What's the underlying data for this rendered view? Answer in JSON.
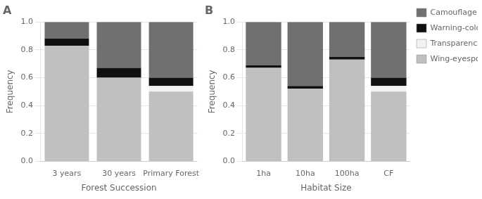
{
  "chart_data": [
    {
      "type": "bar",
      "title": "A",
      "stacked": true,
      "grid": true,
      "categories": [
        "3 years",
        "30 years",
        "Primary Forest"
      ],
      "xlabel": "Forest Succession",
      "ylabel": "Frequency",
      "ylim": [
        0.0,
        1.0
      ],
      "yticks": [
        {
          "value": 0,
          "label": "0.0"
        },
        0.2,
        0.4,
        0.6,
        0.8,
        {
          "value": 1,
          "label": "1.0"
        }
      ],
      "series": [
        {
          "name": "Wing-eyespot",
          "color": "#c0c0c0",
          "values": [
            0.83,
            0.6,
            0.5
          ]
        },
        {
          "name": "Transparency",
          "color": "#f2f2f2",
          "values": [
            0.0,
            0.0,
            0.04
          ]
        },
        {
          "name": "Warning-colour",
          "color": "#101010",
          "values": [
            0.05,
            0.07,
            0.06
          ]
        },
        {
          "name": "Camouflage",
          "color": "#707070",
          "values": [
            0.12,
            0.33,
            0.4
          ]
        }
      ]
    },
    {
      "type": "bar",
      "title": "B",
      "stacked": true,
      "grid": true,
      "legend": "right",
      "categories": [
        "1ha",
        "10ha",
        "100ha",
        "CF"
      ],
      "xlabel": "Habitat Size",
      "ylabel": "Frequency",
      "ylim": [
        0.0,
        1.0
      ],
      "yticks": [
        {
          "value": 0,
          "label": "0.0"
        },
        0.2,
        0.4,
        0.6,
        0.8,
        {
          "value": 1,
          "label": "1.0"
        }
      ],
      "series": [
        {
          "name": "Wing-eyespot",
          "color": "#c0c0c0",
          "values": [
            0.67,
            0.52,
            0.73,
            0.5
          ]
        },
        {
          "name": "Transparency",
          "color": "#f2f2f2",
          "values": [
            0.0,
            0.0,
            0.0,
            0.04
          ]
        },
        {
          "name": "Warning-colour",
          "color": "#101010",
          "values": [
            0.02,
            0.02,
            0.02,
            0.06
          ]
        },
        {
          "name": "Camouflage",
          "color": "#707070",
          "values": [
            0.31,
            0.46,
            0.25,
            0.4
          ]
        }
      ]
    }
  ]
}
